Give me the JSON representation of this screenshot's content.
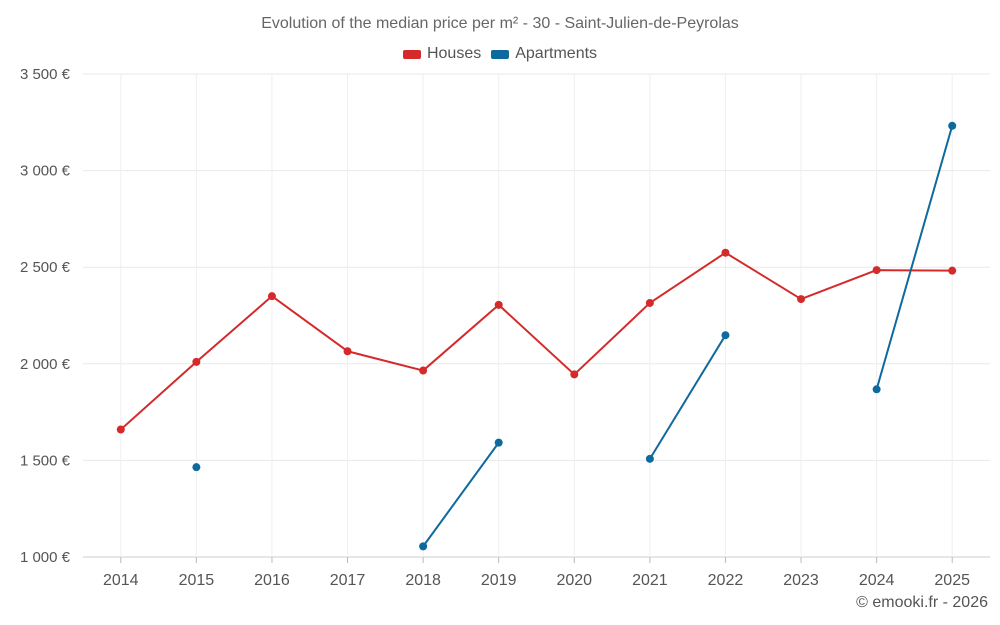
{
  "chart_data": {
    "type": "line",
    "title": "Evolution of the median price per m² - 30 - Saint-Julien-de-Peyrolas",
    "xlabel": "",
    "ylabel": "",
    "categories": [
      "2014",
      "2015",
      "2016",
      "2017",
      "2018",
      "2019",
      "2020",
      "2021",
      "2022",
      "2023",
      "2024",
      "2025"
    ],
    "ylim": [
      1000,
      3500
    ],
    "yticks": [
      1000,
      1500,
      2000,
      2500,
      3000,
      3500
    ],
    "ytick_labels": [
      "1 000 €",
      "1 500 €",
      "2 000 €",
      "2 500 €",
      "3 000 €",
      "3 500 €"
    ],
    "grid": true,
    "legend_position": "top-center",
    "series": [
      {
        "name": "Houses",
        "color": "#d42a2a",
        "values": [
          1660,
          2010,
          2350,
          2065,
          1965,
          2305,
          1945,
          2315,
          2575,
          2335,
          2485,
          2482
        ]
      },
      {
        "name": "Apartments",
        "color": "#0e6a9e",
        "values": [
          null,
          1465,
          null,
          null,
          1055,
          1592,
          null,
          1508,
          2148,
          null,
          1868,
          3232
        ]
      }
    ]
  },
  "legend": {
    "houses_label": "Houses",
    "apartments_label": "Apartments",
    "houses_color": "#d42a2a",
    "apartments_color": "#0e6a9e"
  },
  "credit": "© emooki.fr - 2026"
}
